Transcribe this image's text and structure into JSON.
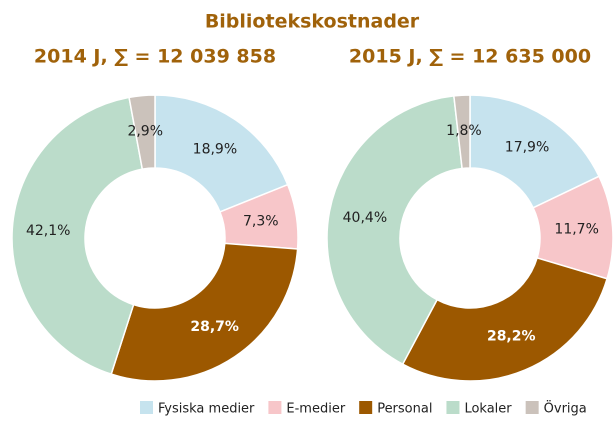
{
  "title": "Bibliotekskostnader",
  "chart_data": [
    {
      "type": "pie",
      "title": "2014 J, ∑ = 12 039 858",
      "categories": [
        "Fysiska medier",
        "E-medier",
        "Personal",
        "Lokaler",
        "Övriga"
      ],
      "values": [
        18.9,
        7.3,
        28.7,
        42.1,
        2.9
      ],
      "value_labels": [
        "18,9%",
        "7,3%",
        "28,7%",
        "42,1%",
        "2,9%"
      ],
      "colors": [
        "#c6e3ee",
        "#f7c6c9",
        "#9c5800",
        "#bbdcca",
        "#cbc2bb"
      ]
    },
    {
      "type": "pie",
      "title": "2015 J, ∑ = 12 635 000",
      "categories": [
        "Fysiska medier",
        "E-medier",
        "Personal",
        "Lokaler",
        "Övriga"
      ],
      "values": [
        17.9,
        11.7,
        28.2,
        40.4,
        1.8
      ],
      "value_labels": [
        "17,9%",
        "11,7%",
        "28,2%",
        "40,4%",
        "1,8%"
      ],
      "colors": [
        "#c6e3ee",
        "#f7c6c9",
        "#9c5800",
        "#bbdcca",
        "#cbc2bb"
      ]
    }
  ]
}
